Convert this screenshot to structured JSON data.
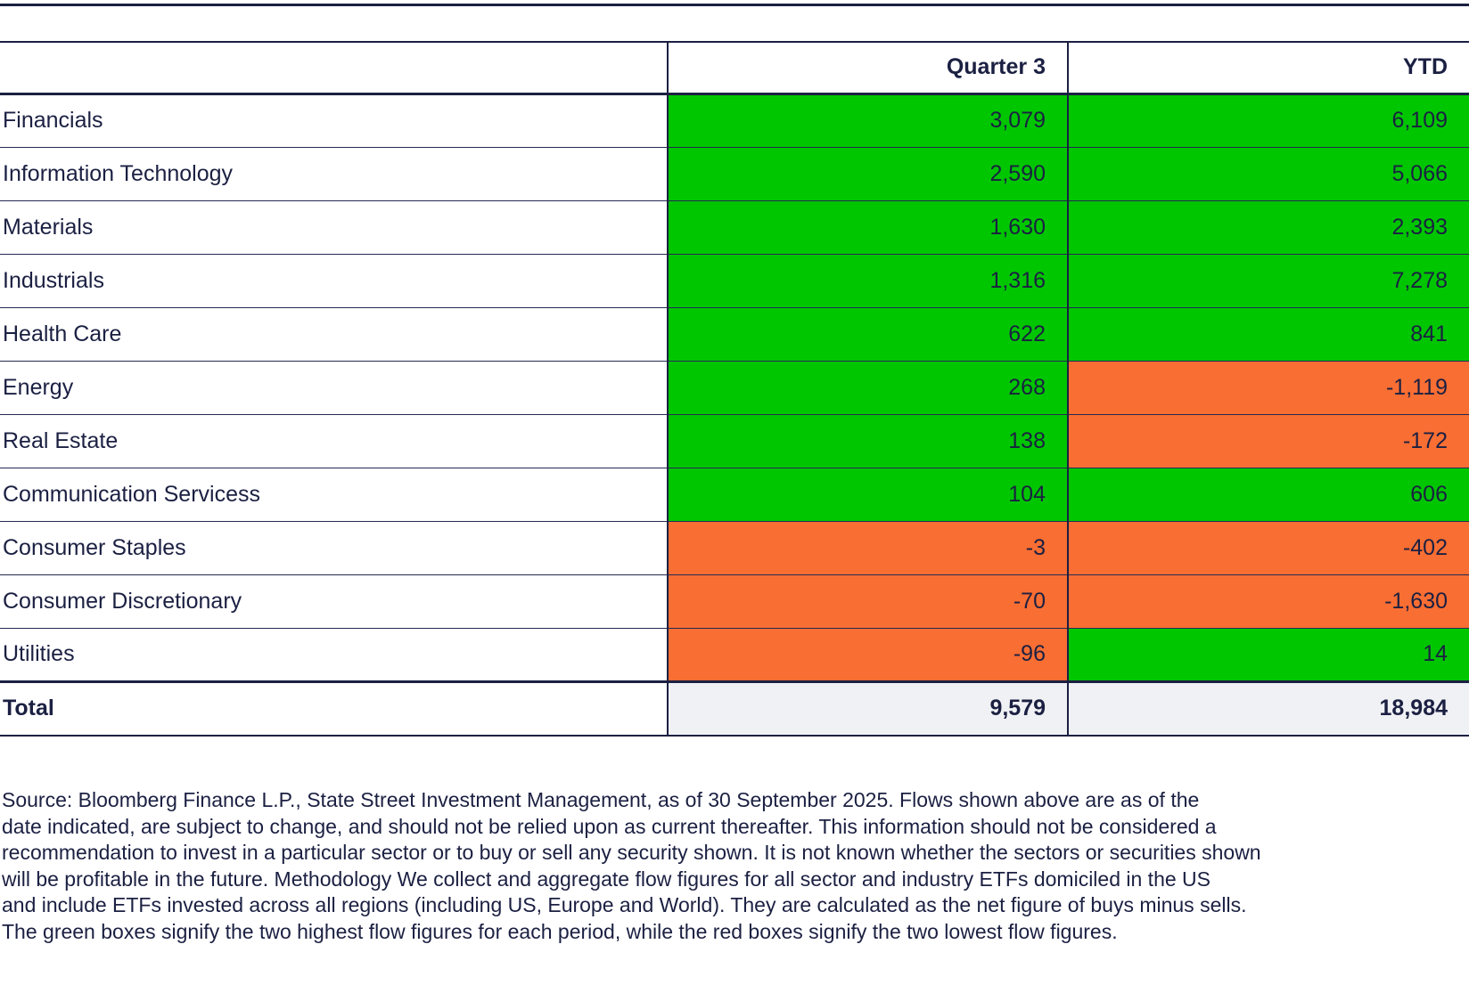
{
  "colors": {
    "navy": "#1b2042",
    "green": "#00c600",
    "orange": "#f96e33",
    "total-bg": "#f0f1f4"
  },
  "table": {
    "q3_header": "Quarter 3",
    "ytd_header": "YTD",
    "rows": [
      {
        "label": "Financials",
        "q3": "3,079",
        "ytd": "6,109",
        "q3_color": "green",
        "ytd_color": "green"
      },
      {
        "label": "Information Technology",
        "q3": "2,590",
        "ytd": "5,066",
        "q3_color": "green",
        "ytd_color": "green"
      },
      {
        "label": "Materials",
        "q3": "1,630",
        "ytd": "2,393",
        "q3_color": "green",
        "ytd_color": "green"
      },
      {
        "label": "Industrials",
        "q3": "1,316",
        "ytd": "7,278",
        "q3_color": "green",
        "ytd_color": "green"
      },
      {
        "label": "Health Care",
        "q3": "622",
        "ytd": "841",
        "q3_color": "green",
        "ytd_color": "green"
      },
      {
        "label": "Energy",
        "q3": "268",
        "ytd": "-1,119",
        "q3_color": "green",
        "ytd_color": "orange"
      },
      {
        "label": "Real Estate",
        "q3": "138",
        "ytd": "-172",
        "q3_color": "green",
        "ytd_color": "orange"
      },
      {
        "label": "Communication Servicess",
        "q3": "104",
        "ytd": "606",
        "q3_color": "green",
        "ytd_color": "green"
      },
      {
        "label": "Consumer Staples",
        "q3": "-3",
        "ytd": "-402",
        "q3_color": "orange",
        "ytd_color": "orange"
      },
      {
        "label": "Consumer Discretionary",
        "q3": "-70",
        "ytd": "-1,630",
        "q3_color": "orange",
        "ytd_color": "orange"
      },
      {
        "label": "Utilities",
        "q3": "-96",
        "ytd": "14",
        "q3_color": "orange",
        "ytd_color": "green"
      }
    ],
    "total": {
      "label": "Total",
      "q3": "9,579",
      "ytd": "18,984"
    }
  },
  "footnote": {
    "lines": [
      "Source: Bloomberg Finance L.P., State Street Investment Management, as of 30 September 2025. Flows shown above are as of the",
      "date indicated, are subject to change, and should not be relied upon as current thereafter. This information should not be considered a",
      "recommendation to invest in a particular sector or to buy or sell any security shown. It is not known whether the sectors or securities shown",
      "will be profitable in the future. Methodology We collect and aggregate flow figures for all sector and industry ETFs domiciled in the US",
      "and include ETFs invested across all regions (including US, Europe and World). They are calculated as the net figure of buys minus sells.",
      "The green boxes signify the two highest flow figures for each period, while the red boxes signify the two lowest flow figures."
    ]
  }
}
